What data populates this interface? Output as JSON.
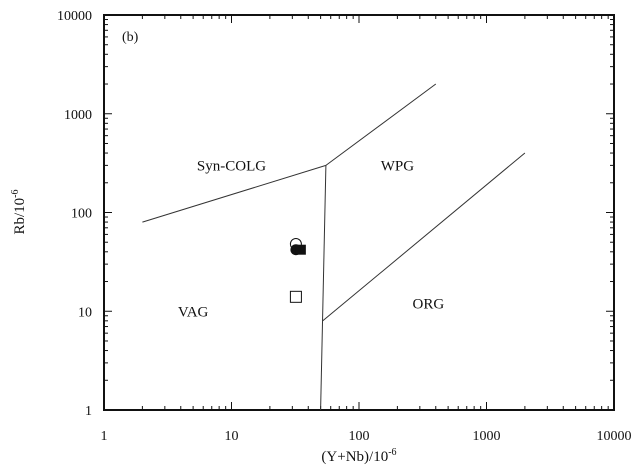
{
  "chart_data": {
    "type": "scatter",
    "title": "",
    "panel_tag": "(b)",
    "xlabel": "(Y+Nb)/10",
    "xlabel_sup": "-6",
    "ylabel": "Rb/10",
    "ylabel_sup": "-6",
    "xscale": "log",
    "yscale": "log",
    "xlim": [
      1,
      10000
    ],
    "ylim": [
      1,
      10000
    ],
    "grid": false,
    "x_ticks": [
      {
        "value": 1,
        "label": "1"
      },
      {
        "value": 10,
        "label": "10"
      },
      {
        "value": 100,
        "label": "100"
      },
      {
        "value": 1000,
        "label": "1000"
      },
      {
        "value": 10000,
        "label": "10000"
      }
    ],
    "y_ticks": [
      {
        "value": 1,
        "label": "1"
      },
      {
        "value": 10,
        "label": "10"
      },
      {
        "value": 100,
        "label": "100"
      },
      {
        "value": 1000,
        "label": "1000"
      },
      {
        "value": 10000,
        "label": "10000"
      }
    ],
    "boundaries": [
      {
        "name": "syn-colg-upper",
        "points": [
          [
            2,
            80
          ],
          [
            55,
            300
          ]
        ]
      },
      {
        "name": "syn-colg-wpg",
        "points": [
          [
            55,
            300
          ],
          [
            400,
            2000
          ]
        ]
      },
      {
        "name": "vag-divider",
        "points": [
          [
            50,
            1
          ],
          [
            55,
            300
          ]
        ]
      },
      {
        "name": "org-boundary",
        "points": [
          [
            52,
            8
          ],
          [
            2000,
            400
          ]
        ]
      }
    ],
    "field_labels": [
      {
        "text": "Syn-COLG",
        "x": 10,
        "y": 300
      },
      {
        "text": "WPG",
        "x": 200,
        "y": 300
      },
      {
        "text": "VAG",
        "x": 5,
        "y": 10
      },
      {
        "text": "ORG",
        "x": 350,
        "y": 12
      }
    ],
    "points": [
      {
        "marker": "open-circle",
        "x": 32,
        "y": 48
      },
      {
        "marker": "filled-circle",
        "x": 32,
        "y": 42
      },
      {
        "marker": "filled-square",
        "x": 35,
        "y": 42
      },
      {
        "marker": "open-square",
        "x": 32,
        "y": 14
      }
    ]
  }
}
